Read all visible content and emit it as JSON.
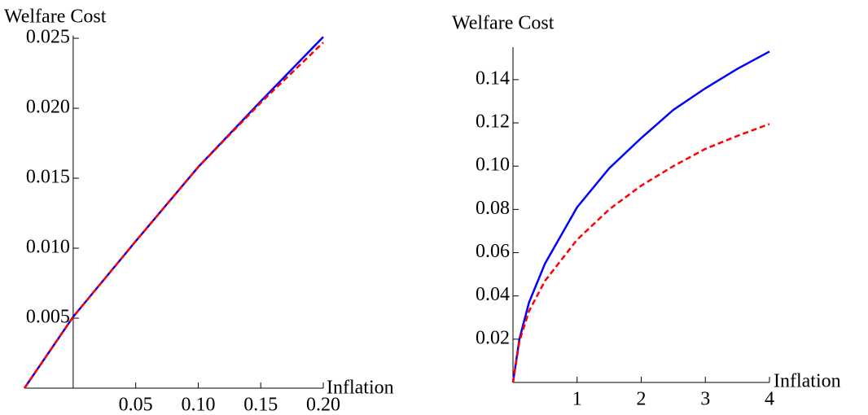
{
  "chart_data": [
    {
      "type": "line",
      "x_label": "Inflation",
      "y_label": "Welfare Cost",
      "x": [
        -0.039,
        0,
        0.05,
        0.1,
        0.15,
        0.2
      ],
      "series": [
        {
          "color": "#0000ff",
          "style": "solid",
          "values": [
            0,
            0.0051,
            0.0105,
            0.0158,
            0.0205,
            0.0251
          ]
        },
        {
          "color": "#ff0000",
          "style": "dashed",
          "values": [
            0,
            0.0051,
            0.0105,
            0.0158,
            0.0204,
            0.0247
          ]
        }
      ],
      "xlim": [
        -0.039,
        0.2
      ],
      "ylim": [
        0,
        0.0252
      ],
      "xticks": [
        0.05,
        {
          "value": 0.1,
          "label": "0.10"
        },
        0.15,
        {
          "value": 0.2,
          "label": "0.20"
        }
      ],
      "yticks": [
        0.005,
        {
          "value": 0.01,
          "label": "0.010"
        },
        0.015,
        {
          "value": 0.02,
          "label": "0.020"
        },
        0.025
      ]
    },
    {
      "type": "line",
      "x_label": "Inflation",
      "y_label": "Welfare Cost",
      "x": [
        0,
        0.1,
        0.25,
        0.5,
        1,
        1.5,
        2,
        2.5,
        3,
        3.5,
        4
      ],
      "series": [
        {
          "color": "#0000ff",
          "style": "solid",
          "values": [
            0,
            0.02,
            0.037,
            0.055,
            0.081,
            0.099,
            0.113,
            0.126,
            0.136,
            0.145,
            0.153
          ]
        },
        {
          "color": "#ff0000",
          "style": "dashed",
          "values": [
            0,
            0.019,
            0.033,
            0.047,
            0.066,
            0.08,
            0.091,
            0.1,
            0.108,
            0.114,
            0.1195
          ]
        }
      ],
      "xlim": [
        0,
        4
      ],
      "ylim": [
        0,
        0.155
      ],
      "xticks": [
        1,
        2,
        3,
        4
      ],
      "yticks": [
        0.02,
        0.04,
        0.06,
        0.08,
        {
          "value": 0.1,
          "label": "0.10"
        },
        0.12,
        0.14
      ]
    }
  ]
}
